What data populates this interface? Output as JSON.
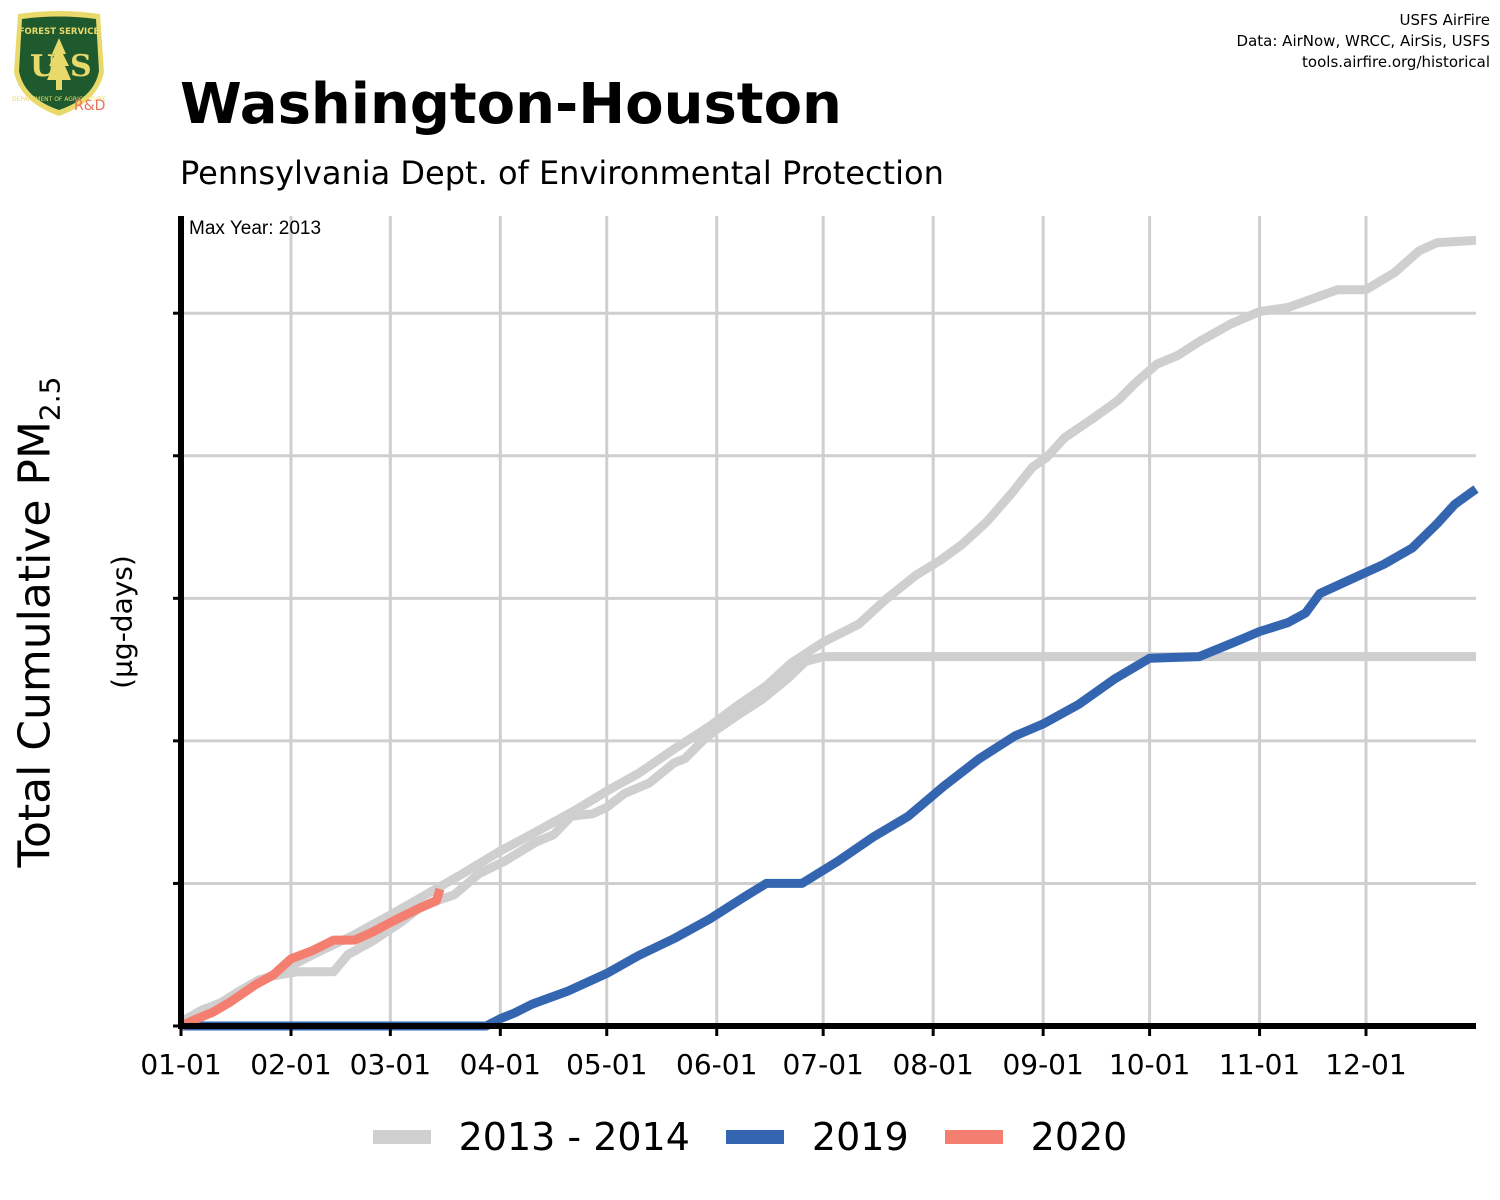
{
  "header": {
    "title": "Washington-Houston",
    "subtitle": "Pennsylvania Dept. of Environmental Protection",
    "credits": [
      "USFS AirFire",
      "Data: AirNow, WRCC, AirSis, USFS",
      "tools.airfire.org/historical"
    ],
    "logo": {
      "top_text": "FOREST SERVICE",
      "letters": "US",
      "bottom_text": "DEPARTMENT OF AGRICULTURE",
      "rd": "R&D",
      "colors": {
        "shield": "#1f5a2e",
        "rim": "#e9d96b",
        "tree": "#e9d96b"
      }
    }
  },
  "colors": {
    "maxyear": "#cfcfcf",
    "y2019": "#3465b0",
    "y2020": "#f47e6f",
    "grid": "#cfcfcf",
    "axis": "#000000"
  },
  "chart_data": {
    "type": "line",
    "title": "Washington-Houston",
    "subtitle": "Pennsylvania Dept. of Environmental Protection",
    "xlabel": "",
    "ylabel": "Total Cumulative PM",
    "ylabel_sub": "2.5",
    "ylabel_unit": "(µg-days)",
    "annotation": "Max Year: 2013",
    "x_ticks": [
      "01-01",
      "02-01",
      "03-01",
      "04-01",
      "05-01",
      "06-01",
      "07-01",
      "08-01",
      "09-01",
      "10-01",
      "11-01",
      "12-01"
    ],
    "x_tick_days": [
      1,
      32,
      60,
      91,
      121,
      152,
      182,
      213,
      244,
      274,
      305,
      335
    ],
    "xlim": [
      1,
      366
    ],
    "ylim": [
      0,
      100
    ],
    "y_grid": [
      0,
      17.6,
      35.2,
      52.8,
      70.4,
      88.0
    ],
    "y_tick_labels_shown": false,
    "grid": true,
    "legend_position": "bottom",
    "series": [
      {
        "name": "2013 - 2014",
        "key": "maxyear",
        "points": [
          [
            1,
            0.5
          ],
          [
            7,
            2
          ],
          [
            12,
            2.8
          ],
          [
            17,
            4.2
          ],
          [
            23,
            5.7
          ],
          [
            27,
            6.2
          ],
          [
            34,
            6.7
          ],
          [
            44,
            6.7
          ],
          [
            48,
            8.8
          ],
          [
            55,
            10.5
          ],
          [
            63,
            12.8
          ],
          [
            68,
            14.5
          ],
          [
            74,
            15.6
          ],
          [
            78,
            16.2
          ],
          [
            85,
            18.8
          ],
          [
            92,
            20.3
          ],
          [
            101,
            22.7
          ],
          [
            106,
            23.6
          ],
          [
            111,
            25.9
          ],
          [
            117,
            26.2
          ],
          [
            121,
            27
          ],
          [
            126,
            28.7
          ],
          [
            133,
            30
          ],
          [
            140,
            32.5
          ],
          [
            143,
            33
          ],
          [
            148,
            35.2
          ],
          [
            152,
            36.6
          ],
          [
            158,
            38.4
          ],
          [
            165,
            40.4
          ],
          [
            172,
            42.9
          ],
          [
            177,
            45
          ],
          [
            182,
            45.6
          ],
          [
            190,
            45.6
          ],
          [
            220,
            45.6
          ],
          [
            260,
            45.6
          ],
          [
            290,
            45.6
          ],
          [
            320,
            45.6
          ],
          [
            366,
            45.6
          ]
        ]
      },
      {
        "name": "2013 - 2014",
        "key": "maxyear",
        "points": [
          [
            1,
            0.5
          ],
          [
            5,
            1.3
          ],
          [
            10,
            2.5
          ],
          [
            16,
            3.5
          ],
          [
            22,
            5.2
          ],
          [
            30,
            7
          ],
          [
            40,
            9.2
          ],
          [
            50,
            11.3
          ],
          [
            60,
            13.7
          ],
          [
            70,
            16.2
          ],
          [
            80,
            18.7
          ],
          [
            91,
            21.6
          ],
          [
            100,
            23.7
          ],
          [
            112,
            26.6
          ],
          [
            121,
            29
          ],
          [
            130,
            31.2
          ],
          [
            140,
            34.2
          ],
          [
            150,
            37
          ],
          [
            158,
            39.6
          ],
          [
            166,
            42
          ],
          [
            173,
            44.8
          ],
          [
            182,
            47.4
          ],
          [
            192,
            49.6
          ],
          [
            200,
            52.8
          ],
          [
            208,
            55.6
          ],
          [
            215,
            57.5
          ],
          [
            221,
            59.4
          ],
          [
            228,
            62.2
          ],
          [
            235,
            65.7
          ],
          [
            241,
            69
          ],
          [
            245,
            70.2
          ],
          [
            250,
            72.6
          ],
          [
            258,
            75
          ],
          [
            265,
            77.2
          ],
          [
            270,
            79.4
          ],
          [
            276,
            81.7
          ],
          [
            282,
            82.8
          ],
          [
            288,
            84.5
          ],
          [
            297,
            86.7
          ],
          [
            305,
            88.2
          ],
          [
            313,
            88.7
          ],
          [
            320,
            89.8
          ],
          [
            327,
            90.9
          ],
          [
            335,
            90.9
          ],
          [
            343,
            93
          ],
          [
            350,
            95.7
          ],
          [
            355,
            96.7
          ],
          [
            366,
            97
          ]
        ]
      },
      {
        "name": "2019",
        "key": "y2019",
        "points": [
          [
            1,
            0
          ],
          [
            40,
            0
          ],
          [
            60,
            0
          ],
          [
            87,
            0
          ],
          [
            91,
            0.9
          ],
          [
            95,
            1.6
          ],
          [
            100,
            2.7
          ],
          [
            110,
            4.3
          ],
          [
            121,
            6.5
          ],
          [
            130,
            8.7
          ],
          [
            140,
            10.8
          ],
          [
            150,
            13.2
          ],
          [
            160,
            16
          ],
          [
            166,
            17.6
          ],
          [
            176,
            17.6
          ],
          [
            186,
            20.3
          ],
          [
            196,
            23.3
          ],
          [
            206,
            25.9
          ],
          [
            216,
            29.6
          ],
          [
            226,
            33
          ],
          [
            236,
            35.8
          ],
          [
            244,
            37.3
          ],
          [
            254,
            39.7
          ],
          [
            264,
            42.8
          ],
          [
            274,
            45.4
          ],
          [
            288,
            45.6
          ],
          [
            298,
            47.4
          ],
          [
            305,
            48.7
          ],
          [
            313,
            49.8
          ],
          [
            318,
            51
          ],
          [
            322,
            53.4
          ],
          [
            330,
            55
          ],
          [
            340,
            57
          ],
          [
            348,
            59
          ],
          [
            355,
            62
          ],
          [
            360,
            64.4
          ],
          [
            366,
            66.3
          ]
        ]
      },
      {
        "name": "2020",
        "key": "y2020",
        "points": [
          [
            1,
            0
          ],
          [
            5,
            0.8
          ],
          [
            10,
            1.7
          ],
          [
            15,
            3
          ],
          [
            22,
            5.1
          ],
          [
            27,
            6.3
          ],
          [
            32,
            8.3
          ],
          [
            38,
            9.3
          ],
          [
            44,
            10.6
          ],
          [
            50,
            10.6
          ],
          [
            55,
            11.6
          ],
          [
            61,
            13
          ],
          [
            68,
            14.5
          ],
          [
            73,
            15.5
          ],
          [
            74,
            16.9
          ]
        ]
      }
    ]
  },
  "legend": [
    {
      "label": "2013 - 2014",
      "color": "#cfcfcf"
    },
    {
      "label": "2019",
      "color": "#3465b0"
    },
    {
      "label": "2020",
      "color": "#f47e6f"
    }
  ]
}
